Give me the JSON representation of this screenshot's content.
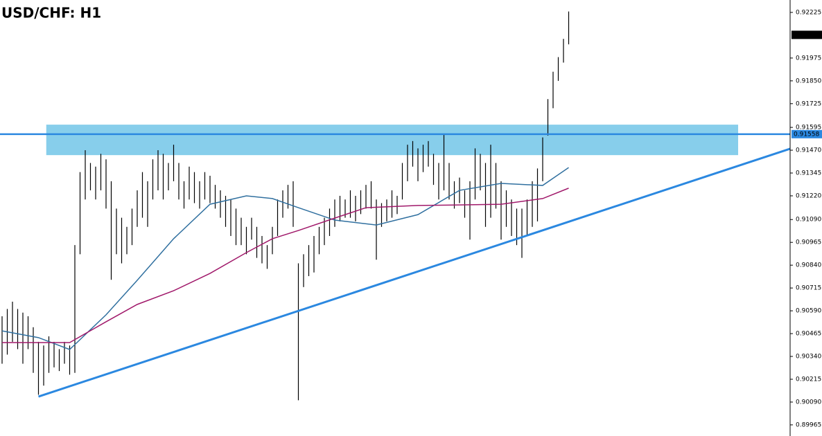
{
  "chart_data": {
    "type": "ohlc",
    "title": "USD/CHF: H1",
    "color": "#000000",
    "xlim": [
      -0.4,
      151.6
    ],
    "ylim": [
      0.89904,
      0.92293
    ],
    "yticks": [
      0.92225,
      0.91975,
      {
        "value": 0.9185,
        "label": "0.91850"
      },
      0.91725,
      0.91595,
      {
        "value": 0.9147,
        "label": "0.91470"
      },
      0.91345,
      {
        "value": 0.9122,
        "label": "0.91220"
      },
      {
        "value": 0.9109,
        "label": "0.91090"
      },
      0.90965,
      {
        "value": 0.9084,
        "label": "0.90840"
      },
      0.90715,
      {
        "value": 0.9059,
        "label": "0.90590"
      },
      0.90465,
      {
        "value": 0.9034,
        "label": "0.90340"
      },
      0.90215,
      {
        "value": 0.9009,
        "label": "0.90090"
      },
      0.89965
    ],
    "high": [
      0.9056,
      0.906,
      0.9064,
      0.906,
      0.9058,
      0.9056,
      0.905,
      0.9042,
      0.904,
      0.9045,
      0.9042,
      0.9038,
      0.9042,
      0.904,
      0.9095,
      0.9135,
      0.9147,
      0.914,
      0.9138,
      0.9145,
      0.9142,
      0.913,
      0.9115,
      0.911,
      0.9105,
      0.9115,
      0.9125,
      0.9135,
      0.913,
      0.9142,
      0.9147,
      0.9145,
      0.914,
      0.915,
      0.914,
      0.913,
      0.9138,
      0.9135,
      0.913,
      0.9135,
      0.9133,
      0.9128,
      0.9125,
      0.9122,
      0.912,
      0.9115,
      0.911,
      0.9105,
      0.911,
      0.9105,
      0.91,
      0.9095,
      0.9105,
      0.912,
      0.9125,
      0.9128,
      0.913,
      0.9085,
      0.909,
      0.9095,
      0.91,
      0.9105,
      0.911,
      0.9115,
      0.912,
      0.9122,
      0.912,
      0.9125,
      0.9122,
      0.9125,
      0.9128,
      0.913,
      0.912,
      0.9118,
      0.912,
      0.9125,
      0.9122,
      0.914,
      0.915,
      0.9152,
      0.9148,
      0.915,
      0.9152,
      0.9145,
      0.914,
      0.9156,
      0.914,
      0.913,
      0.9132,
      0.9125,
      0.913,
      0.9148,
      0.9145,
      0.914,
      0.915,
      0.914,
      0.913,
      0.9125,
      0.912,
      0.9115,
      0.9115,
      0.912,
      0.913,
      0.9137,
      0.9154,
      0.9175,
      0.919,
      0.9198,
      0.9208,
      0.9223
    ],
    "low": [
      0.903,
      0.9035,
      0.9042,
      0.9038,
      0.903,
      0.9038,
      0.9025,
      0.9013,
      0.9018,
      0.9025,
      0.9028,
      0.9026,
      0.903,
      0.9024,
      0.9025,
      0.909,
      0.912,
      0.9125,
      0.912,
      0.9125,
      0.9115,
      0.9076,
      0.909,
      0.9085,
      0.909,
      0.9095,
      0.9105,
      0.911,
      0.9105,
      0.912,
      0.9125,
      0.912,
      0.9125,
      0.913,
      0.912,
      0.9115,
      0.912,
      0.9118,
      0.9115,
      0.912,
      0.9118,
      0.9115,
      0.911,
      0.9105,
      0.91,
      0.9095,
      0.9095,
      0.909,
      0.9098,
      0.9088,
      0.9085,
      0.9082,
      0.909,
      0.91,
      0.911,
      0.9115,
      0.9105,
      0.901,
      0.9072,
      0.9078,
      0.908,
      0.909,
      0.9095,
      0.91,
      0.9105,
      0.9108,
      0.911,
      0.911,
      0.9108,
      0.9112,
      0.9115,
      0.9115,
      0.9087,
      0.9105,
      0.9108,
      0.911,
      0.9112,
      0.912,
      0.913,
      0.9138,
      0.913,
      0.9135,
      0.9138,
      0.9128,
      0.912,
      0.9125,
      0.912,
      0.9115,
      0.9118,
      0.911,
      0.9098,
      0.912,
      0.9125,
      0.9105,
      0.911,
      0.9115,
      0.9098,
      0.9105,
      0.91,
      0.9095,
      0.9088,
      0.91,
      0.9105,
      0.9108,
      0.913,
      0.9155,
      0.917,
      0.9185,
      0.9195,
      0.9205
    ],
    "moving_averages": [
      {
        "color": "#2f6f9f",
        "x": [
          0,
          7,
          13,
          20,
          26,
          33,
          40,
          47,
          52,
          57,
          64,
          72,
          80,
          88,
          96,
          104,
          109
        ],
        "values": [
          0.9048,
          0.90443,
          0.90378,
          0.90568,
          0.90757,
          0.90985,
          0.91174,
          0.9122,
          0.91205,
          0.91155,
          0.91087,
          0.9106,
          0.91117,
          0.9125,
          0.91288,
          0.91277,
          0.91375
        ]
      },
      {
        "color": "#a0186a",
        "x": [
          0,
          13,
          20,
          26,
          33,
          40,
          47,
          52,
          57,
          64,
          70,
          80,
          88,
          96,
          104,
          109
        ],
        "values": [
          0.90416,
          0.90416,
          0.9053,
          0.90625,
          0.907,
          0.90795,
          0.90909,
          0.90985,
          0.9103,
          0.91098,
          0.91155,
          0.91167,
          0.9117,
          0.91174,
          0.91205,
          0.91262
        ]
      }
    ],
    "zone": {
      "xlim": [
        8.5,
        141.6
      ],
      "ylim": [
        0.91443,
        0.9161
      ],
      "color": "#87ceeb"
    },
    "trendline": {
      "x": [
        7,
        151.6
      ],
      "values": [
        0.9012,
        0.91478
      ],
      "color": "#2b88e0"
    },
    "level": {
      "value": 0.91558,
      "color": "#2b88e0"
    },
    "last_price": 0.92102
  }
}
